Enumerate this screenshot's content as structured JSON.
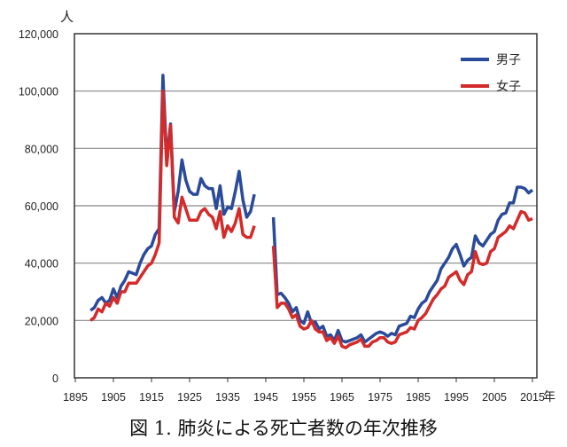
{
  "chart_data": {
    "type": "line",
    "title": "図 1. 肺炎による死亡者数の年次推移",
    "ylabel": "人",
    "xlabel": "年",
    "xlim": [
      1895,
      2015
    ],
    "ylim": [
      0,
      120000
    ],
    "x_ticks": [
      "1895",
      "1905",
      "1915",
      "1925",
      "1935",
      "1945",
      "1955",
      "1965",
      "1975",
      "1985",
      "1995",
      "2005",
      "2015"
    ],
    "y_ticks": [
      "0",
      "20,000",
      "40,000",
      "60,000",
      "80,000",
      "100,000",
      "120,000"
    ],
    "grid": true,
    "legend_position": "top-right",
    "series": [
      {
        "name": "男子",
        "color": "#2a4a9a",
        "segments": [
          {
            "start": 1899,
            "values": [
              23500,
              24500,
              27000,
              28000,
              26000,
              27000,
              31000,
              28000,
              32000,
              34000,
              37000,
              36500,
              36000,
              40000,
              43000,
              45000,
              46000,
              50000,
              52000,
              105500,
              76000,
              88500,
              58000,
              65000,
              76000,
              69000,
              65000,
              64000,
              64000,
              69500,
              67000,
              66000,
              66000,
              59000,
              67000,
              57000,
              59500,
              59000,
              65000,
              72000,
              62000,
              56000,
              58000,
              64000
            ]
          },
          {
            "start": 1947,
            "values": [
              56000,
              29000,
              29500,
              28000,
              26000,
              23000,
              24500,
              20000,
              19000,
              23000,
              19000,
              19500,
              17000,
              18000,
              14500,
              15000,
              13000,
              16500,
              13000,
              12500,
              13000,
              13500,
              14000,
              15000,
              12500,
              13500,
              14500,
              15500,
              16000,
              15500,
              14500,
              15500,
              15000,
              18000,
              18500,
              19000,
              21500,
              21000,
              24000,
              26000,
              27000,
              30000,
              32000,
              34000,
              38000,
              40000,
              42000,
              45000,
              46500,
              43000,
              39000,
              41000,
              42000,
              49500,
              47000,
              46000,
              48000,
              50000,
              51000,
              55000,
              57000,
              57500,
              61000,
              61000,
              66500,
              66500,
              66000,
              64500,
              65500
            ]
          }
        ]
      },
      {
        "name": "女子",
        "color": "#d42a2a",
        "segments": [
          {
            "start": 1899,
            "values": [
              20000,
              21000,
              24000,
              23000,
              26000,
              25000,
              28000,
              26000,
              30000,
              30000,
              33000,
              33000,
              33000,
              35000,
              37000,
              39000,
              40000,
              43000,
              47000,
              100000,
              74000,
              88000,
              56000,
              54000,
              63000,
              59000,
              55000,
              55000,
              55000,
              58000,
              59000,
              57000,
              56000,
              52000,
              58000,
              49000,
              53000,
              51000,
              54000,
              59000,
              50000,
              49000,
              49000,
              53000
            ]
          },
          {
            "start": 1947,
            "values": [
              46000,
              24500,
              26000,
              26000,
              24000,
              21000,
              22000,
              18000,
              17000,
              17500,
              20000,
              17000,
              16000,
              16000,
              13000,
              14000,
              12000,
              14500,
              11000,
              10500,
              11500,
              12000,
              12500,
              13500,
              11000,
              11000,
              12500,
              13000,
              14000,
              14000,
              12500,
              12000,
              12500,
              15000,
              15500,
              16000,
              17500,
              17000,
              20000,
              21000,
              22500,
              25000,
              27500,
              29000,
              31000,
              32000,
              35000,
              36000,
              37000,
              34000,
              32500,
              36000,
              37000,
              44000,
              40000,
              39500,
              40000,
              44000,
              45000,
              49000,
              50000,
              51000,
              53000,
              52000,
              55000,
              58000,
              57500,
              55000,
              55500
            ]
          }
        ]
      }
    ]
  }
}
